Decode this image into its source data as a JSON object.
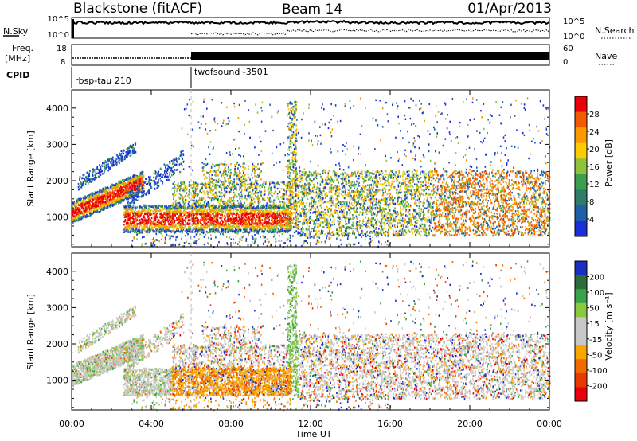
{
  "header": {
    "station": "Blackstone (fitACF)",
    "beam": "Beam 14",
    "date": "01/Apr/2013"
  },
  "labels": {
    "nsky": "N.Sky",
    "nsearch": "N.Search",
    "freq_line1": "Freq.",
    "freq_line2": "[MHz]",
    "nave": "Nave",
    "cpid": "CPID"
  },
  "noise_panel": {
    "left_ticks": [
      "10^5",
      "10^0"
    ],
    "right_ticks": [
      "10^5",
      "10^0"
    ]
  },
  "freq_panel": {
    "left_ticks": [
      "18",
      "8"
    ],
    "right_ticks": [
      "60",
      "0"
    ]
  },
  "cpid_panel": {
    "programs": [
      {
        "name": "rbsp-tau 210",
        "start_hour": 0
      },
      {
        "name": "twofsound -3501",
        "start_hour": 6
      }
    ]
  },
  "chart_data": [
    {
      "type": "heatmap",
      "name": "Power",
      "ylabel": "Slant Range [km]",
      "ylim": [
        180,
        4500
      ],
      "yticks": [
        1000,
        2000,
        3000,
        4000
      ],
      "xlim_hours": [
        0,
        24
      ],
      "colorbar": {
        "label": "Power [dB]",
        "ticks": [
          "28",
          "24",
          "20",
          "16",
          "12",
          "8",
          "4"
        ],
        "colors": [
          "#e8000a",
          "#f25a00",
          "#fb9a00",
          "#ffcc00",
          "#8fc23d",
          "#3c9f4f",
          "#2f7d68",
          "#1f5fa8",
          "#1a2fd8"
        ]
      }
    },
    {
      "type": "heatmap",
      "name": "Velocity",
      "ylabel": "Slant Range [km]",
      "ylim": [
        180,
        4500
      ],
      "yticks": [
        1000,
        2000,
        3000,
        4000
      ],
      "xlim_hours": [
        0,
        24
      ],
      "colorbar": {
        "label": "Velocity [m s⁻¹]",
        "ticks": [
          "200",
          "100",
          "50",
          "15",
          "-15",
          "-50",
          "-100",
          "-200"
        ],
        "colors": [
          "#1a2fbf",
          "#2d6b3c",
          "#3aa34a",
          "#88c940",
          "#c8c8c8",
          "#c8c8c8",
          "#f7a700",
          "#f06a00",
          "#e83a00",
          "#e8000a"
        ]
      }
    }
  ],
  "xaxis": {
    "ticks": [
      "00:00",
      "04:00",
      "08:00",
      "12:00",
      "16:00",
      "20:00",
      "00:00"
    ],
    "label": "Time UT"
  }
}
